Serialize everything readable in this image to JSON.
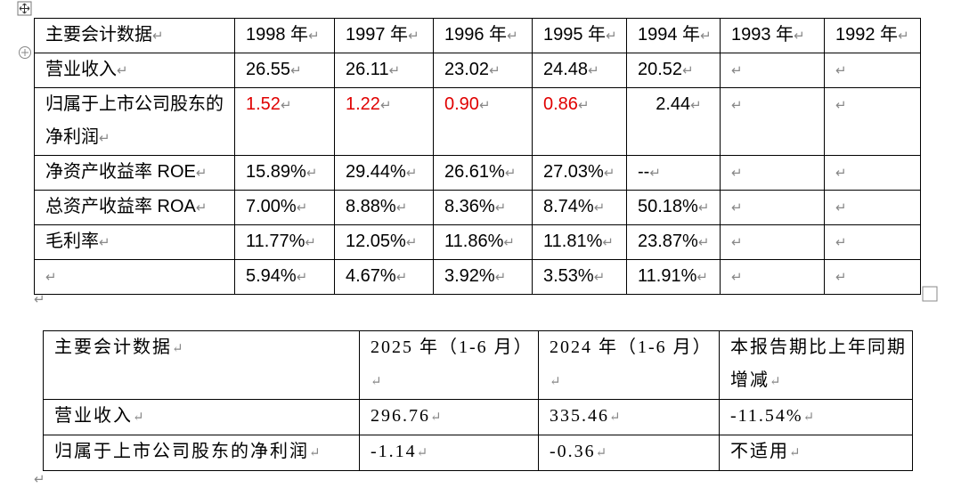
{
  "table_1": {
    "rows": [
      [
        "主要会计数据",
        "1998 年",
        "1997 年",
        "1996 年",
        "1995 年",
        "1994 年",
        "1993 年",
        "1992 年"
      ],
      [
        "营业收入",
        "26.55",
        "26.11",
        "23.02",
        "24.48",
        "20.52",
        null,
        null
      ],
      [
        "归属于上市公司股东的净利润",
        "1.52",
        "1.22",
        "0.90",
        "0.86",
        "2.44",
        null,
        null
      ],
      [
        "净资产收益率 ROE",
        "15.89%",
        "29.44%",
        "26.61%",
        "27.03%",
        "--",
        null,
        null
      ],
      [
        "总资产收益率 ROA",
        "7.00%",
        "8.88%",
        "8.36%",
        "8.74%",
        "50.18%",
        null,
        null
      ],
      [
        "毛利率",
        "11.77%",
        "12.05%",
        "11.86%",
        "11.81%",
        "23.87%",
        null,
        null
      ],
      [
        null,
        "5.94%",
        "4.67%",
        "3.92%",
        "3.53%",
        "11.91%",
        null,
        null
      ]
    ]
  },
  "table_2": {
    "rows": [
      [
        "主要会计数据",
        "2025 年（1-6 月）",
        "2024 年（1-6 月）",
        "本报告期比上年同期增减"
      ],
      [
        "营业收入",
        "296.76",
        "335.46",
        "-11.54%"
      ],
      [
        "归属于上市公司股东的净利润",
        "-1.14",
        "-0.36",
        "不适用"
      ]
    ]
  }
}
